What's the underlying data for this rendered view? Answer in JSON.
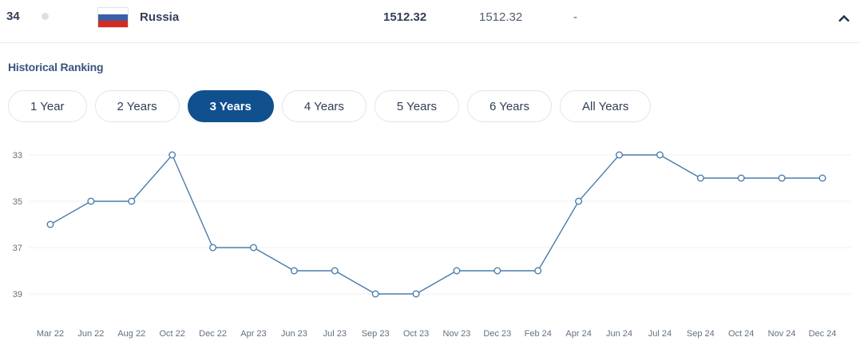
{
  "row": {
    "rank": "34",
    "country": "Russia",
    "flag": "russia-flag",
    "points_total": "1512.32",
    "points_previous": "1512.32",
    "rank_change": "-"
  },
  "section": {
    "title": "Historical Ranking"
  },
  "tabs": [
    {
      "label": "1 Year",
      "active": false
    },
    {
      "label": "2 Years",
      "active": false
    },
    {
      "label": "3 Years",
      "active": true
    },
    {
      "label": "4 Years",
      "active": false
    },
    {
      "label": "5 Years",
      "active": false
    },
    {
      "label": "6 Years",
      "active": false
    },
    {
      "label": "All Years",
      "active": false
    }
  ],
  "chart_data": {
    "type": "line",
    "title": "Historical Ranking",
    "x": [
      "Mar 22",
      "Jun 22",
      "Aug 22",
      "Oct 22",
      "Dec 22",
      "Apr 23",
      "Jun 23",
      "Jul 23",
      "Sep 23",
      "Oct 23",
      "Nov 23",
      "Dec 23",
      "Feb 24",
      "Apr 24",
      "Jun 24",
      "Jul 24",
      "Sep 24",
      "Oct 24",
      "Nov 24",
      "Dec 24"
    ],
    "values": [
      36,
      35,
      35,
      33,
      37,
      37,
      38,
      38,
      39,
      39,
      38,
      38,
      38,
      35,
      33,
      33,
      34,
      34,
      34,
      34
    ],
    "xlabel": "",
    "ylabel": "",
    "yticks": [
      33,
      35,
      37,
      39
    ],
    "ylim": [
      33,
      39
    ],
    "y_axis_inverted": true,
    "grid": true,
    "legend": false,
    "marker": "open-circle",
    "line_color": "#4a7dac",
    "grid_color": "#f0f2f4",
    "tick_color": "#637080"
  },
  "colors": {
    "accent_active_tab": "#10508e",
    "navy_text": "#333f58",
    "secondary_text": "#515c6b",
    "flag_blue": "#3d5da8",
    "flag_red": "#d52b1e"
  }
}
